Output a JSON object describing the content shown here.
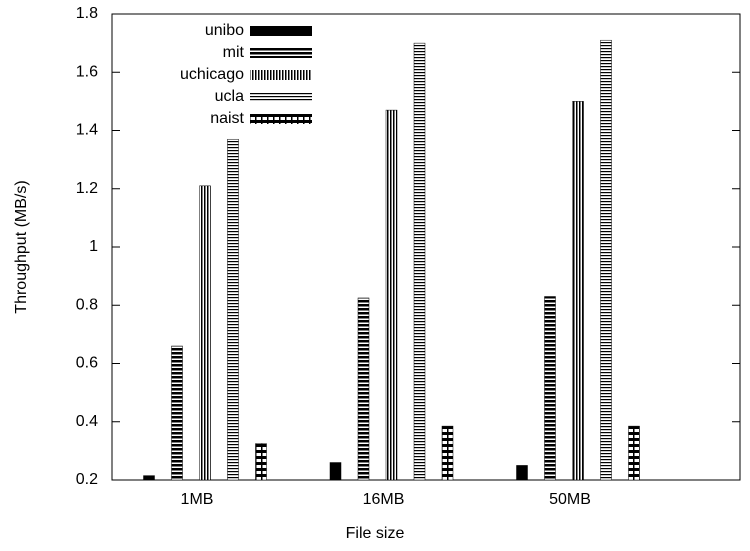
{
  "chart_data": {
    "type": "bar",
    "xlabel": "File size",
    "ylabel": "Throughput (MB/s)",
    "categories": [
      "1MB",
      "16MB",
      "50MB"
    ],
    "series": [
      {
        "name": "unibo",
        "color": "#000000",
        "values": [
          0.215,
          0.26,
          0.25
        ]
      },
      {
        "name": "mit",
        "color": "#000000",
        "values": [
          0.66,
          0.825,
          0.83
        ]
      },
      {
        "name": "uchicago",
        "color": "#000000",
        "values": [
          1.21,
          1.47,
          1.5
        ]
      },
      {
        "name": "ucla",
        "color": "#000000",
        "values": [
          1.37,
          1.7,
          1.71
        ]
      },
      {
        "name": "naist",
        "color": "#000000",
        "values": [
          0.325,
          0.385,
          0.385
        ]
      }
    ],
    "ylim": [
      0.2,
      1.8
    ],
    "yticks": [
      0.2,
      0.4,
      0.6,
      0.8,
      1,
      1.2,
      1.4,
      1.6,
      1.8
    ],
    "legend": "top-left"
  }
}
